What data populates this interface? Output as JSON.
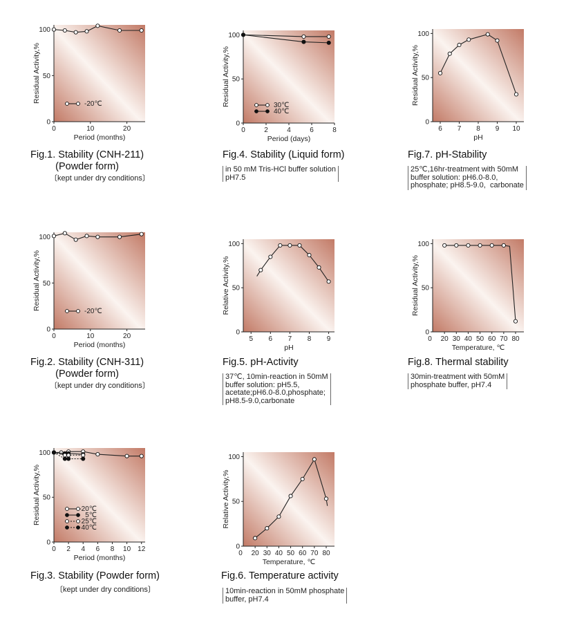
{
  "colors": {
    "panel_light": "#fbf4f0",
    "panel_dark": "#c27a66",
    "line": "#222222"
  },
  "chart_data": [
    {
      "id": "fig1",
      "type": "line",
      "title": "Fig.1. Stability (CNH-211)\n(Powder form)",
      "note": "〔kept under dry conditions〕",
      "xlabel": "Period (months)",
      "ylabel": "Residual Activity,%",
      "xlim": [
        0,
        25
      ],
      "ylim": [
        0,
        105
      ],
      "xticks": [
        0,
        10,
        20
      ],
      "yticks": [
        0,
        50,
        100
      ],
      "series": [
        {
          "name": "-20℃",
          "marker": "open",
          "x": [
            0,
            3,
            6,
            9,
            12,
            18,
            24
          ],
          "y": [
            100,
            99,
            97,
            98,
            104,
            99,
            99
          ]
        }
      ],
      "legend": "bottom-left"
    },
    {
      "id": "fig2",
      "type": "line",
      "title": "Fig.2. Stability (CNH-311)\n(Powder form)",
      "note": "〔kept under dry conditions〕",
      "xlabel": "Period (months)",
      "ylabel": "Residual Activity,%",
      "xlim": [
        0,
        25
      ],
      "ylim": [
        0,
        105
      ],
      "xticks": [
        0,
        10,
        20
      ],
      "yticks": [
        0,
        50,
        100
      ],
      "series": [
        {
          "name": "-20℃",
          "marker": "open",
          "x": [
            0,
            3,
            6,
            9,
            12,
            18,
            24
          ],
          "y": [
            101,
            104,
            97,
            101,
            100,
            100,
            103
          ]
        }
      ],
      "legend": "bottom-left"
    },
    {
      "id": "fig3",
      "type": "line",
      "title": "Fig.3. Stability (Powder form)",
      "note": "〔kept under dry conditions〕",
      "xlabel": "Period (months)",
      "ylabel": "Residual Activity,%",
      "xlim": [
        0,
        12.5
      ],
      "ylim": [
        0,
        105
      ],
      "xticks": [
        0,
        2,
        4,
        6,
        8,
        10,
        12
      ],
      "yticks": [
        0,
        50,
        100
      ],
      "series": [
        {
          "name": "-20℃",
          "marker": "open",
          "dash": false,
          "x": [
            0,
            1,
            2,
            4,
            6,
            10,
            12
          ],
          "y": [
            100,
            100,
            101,
            101,
            98,
            96,
            96
          ]
        },
        {
          "name": "5℃",
          "marker": "filled",
          "dash": false,
          "x": [
            0,
            1.5,
            2,
            4
          ],
          "y": [
            100,
            99,
            99,
            98
          ]
        },
        {
          "name": "25℃",
          "marker": "open",
          "dash": true,
          "x": [
            0,
            1.5,
            2,
            4
          ],
          "y": [
            100,
            97,
            97,
            97
          ]
        },
        {
          "name": "40℃",
          "marker": "filled",
          "dash": true,
          "x": [
            0,
            1.5,
            2,
            4
          ],
          "y": [
            100,
            93,
            93,
            93
          ]
        }
      ],
      "legend": "bottom-left"
    },
    {
      "id": "fig4",
      "type": "line",
      "title": "Fig.4. Stability (Liquid form)",
      "note": "in 50 mM Tris-HCl buffer solution\npH7.5",
      "xlabel": "Period (days)",
      "ylabel": "Residual Activity,%",
      "xlim": [
        0,
        8
      ],
      "ylim": [
        0,
        105
      ],
      "xticks": [
        0,
        2,
        4,
        6,
        8
      ],
      "yticks": [
        0,
        50,
        100
      ],
      "series": [
        {
          "name": "30℃",
          "marker": "open",
          "x": [
            0,
            5.3,
            7.5
          ],
          "y": [
            100,
            98,
            98
          ]
        },
        {
          "name": "40℃",
          "marker": "filled",
          "x": [
            0,
            5.3,
            7.5
          ],
          "y": [
            100,
            92,
            91
          ]
        }
      ],
      "legend": "bottom-left"
    },
    {
      "id": "fig5",
      "type": "line",
      "title": "Fig.5. pH-Activity",
      "note": "37℃, 10min-reaction in 50mM\nbuffer solution: pH5.5,\nacetate;pH6.0-8.0,phosphate;\npH8.5-9.0,carbonate",
      "xlabel": "pH",
      "ylabel": "Relative Activity,%",
      "xlim": [
        4.6,
        9.3
      ],
      "ylim": [
        0,
        105
      ],
      "xticks": [
        5,
        6,
        7,
        8,
        9
      ],
      "yticks": [
        0,
        50,
        100
      ],
      "series": [
        {
          "name": "",
          "marker": "open",
          "x": [
            5.5,
            6.0,
            6.5,
            7.0,
            7.5,
            8.0,
            8.5,
            9.0
          ],
          "y": [
            70,
            85,
            98,
            98,
            98,
            87,
            73,
            57
          ]
        }
      ],
      "line_extend_start": [
        5.3,
        63
      ]
    },
    {
      "id": "fig6",
      "type": "line",
      "title": "Fig.6. Temperature activity",
      "note": "10min-reaction in 50mM phosphate\nbuffer, pH7.4",
      "xlabel": "Temperature, ℃",
      "ylabel": "Relative Activity,%",
      "xlim": [
        10,
        87
      ],
      "ylim": [
        0,
        105
      ],
      "xticks": [
        20,
        30,
        40,
        50,
        60,
        70,
        80
      ],
      "xtick_zero_label": "0",
      "yticks": [
        0,
        50,
        100
      ],
      "series": [
        {
          "name": "",
          "marker": "open",
          "x": [
            20,
            30,
            40,
            50,
            60,
            70,
            80
          ],
          "y": [
            9,
            20,
            33,
            56,
            75,
            97,
            53
          ]
        }
      ],
      "line_extend_end": [
        81,
        45
      ]
    },
    {
      "id": "fig7",
      "type": "line",
      "title": "Fig.7. pH-Stability",
      "note": "25℃,16hr-treatment with 50mM\nbuffer solution: pH6.0-8.0,\nphosphate; pH8.5-9.0,  carbonate",
      "xlabel": "pH",
      "ylabel": "Residual Activity,%",
      "xlim": [
        5.6,
        10.4
      ],
      "ylim": [
        0,
        105
      ],
      "xticks": [
        6,
        7,
        8,
        9,
        10
      ],
      "yticks": [
        0,
        50,
        100
      ],
      "series": [
        {
          "name": "",
          "marker": "open",
          "x": [
            6.0,
            6.5,
            7.0,
            7.5,
            8.5,
            9.0,
            10.0
          ],
          "y": [
            55,
            77,
            87,
            93,
            99,
            92,
            31
          ]
        }
      ]
    },
    {
      "id": "fig8",
      "type": "line",
      "title": "Fig.8. Thermal stability",
      "note": "30min-treatment with 50mM\nphosphate buffer, pH7.4",
      "xlabel": "Temperature, ℃",
      "ylabel": "Residual Activity,%",
      "xlim": [
        10,
        87
      ],
      "ylim": [
        0,
        105
      ],
      "xticks": [
        20,
        30,
        40,
        50,
        60,
        70,
        80
      ],
      "xtick_zero_label": "0",
      "yticks": [
        0,
        50,
        100
      ],
      "series": [
        {
          "name": "",
          "marker": "open",
          "x": [
            20,
            30,
            40,
            50,
            60,
            70,
            80
          ],
          "y": [
            98,
            98,
            98,
            98,
            98,
            98,
            12
          ]
        }
      ],
      "line_knee": [
        75,
        97
      ]
    }
  ]
}
